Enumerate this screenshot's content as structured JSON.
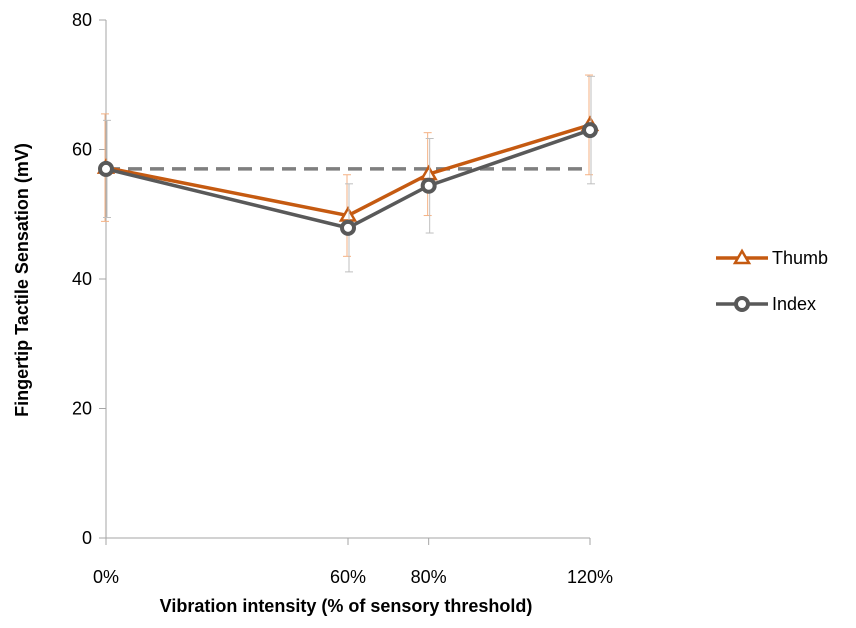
{
  "chart_data": {
    "type": "line",
    "title": "",
    "xlabel": "Vibration intensity (% of sensory threshold)",
    "ylabel": "Fingertip Tactile Sensation (mV)",
    "x": [
      0,
      60,
      80,
      120
    ],
    "x_tick_labels": [
      "0%",
      "60%",
      "80%",
      "120%"
    ],
    "ylim": [
      0,
      80
    ],
    "y_ticks": [
      0,
      20,
      40,
      60,
      80
    ],
    "y_tick_labels": [
      "0",
      "20",
      "40",
      "60",
      "80"
    ],
    "xlim": [
      0,
      120
    ],
    "grid": false,
    "legend_position": "right",
    "reference_line": {
      "y": 57,
      "style": "dashed",
      "color": "#7f7f7f"
    },
    "series": [
      {
        "name": "Thumb",
        "color": "#c55a11",
        "marker": "triangle",
        "values": [
          57.2,
          49.8,
          56.2,
          63.8
        ],
        "error": [
          8.3,
          6.3,
          6.4,
          7.7
        ]
      },
      {
        "name": "Index",
        "color": "#595959",
        "marker": "circle",
        "values": [
          57.0,
          47.9,
          54.4,
          63.0
        ],
        "error": [
          7.5,
          6.8,
          7.3,
          8.3
        ]
      }
    ]
  }
}
